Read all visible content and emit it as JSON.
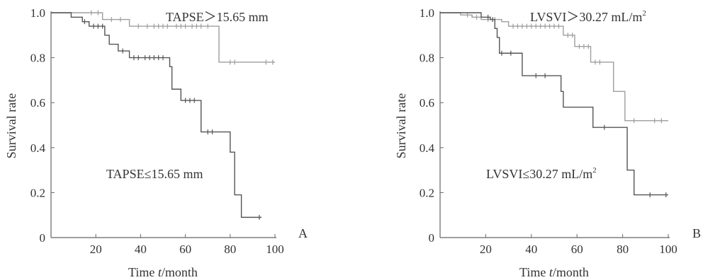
{
  "chart_data": [
    {
      "type": "line",
      "subtype": "kaplan-meier",
      "panel_label": "A",
      "xlabel_parts": [
        "Time ",
        "t",
        "/month"
      ],
      "ylabel": "Survival rate",
      "xlim": [
        0,
        100
      ],
      "ylim": [
        0,
        1.0
      ],
      "xticks": [
        20,
        40,
        60,
        80,
        100
      ],
      "xtick_labels": [
        "20",
        "40",
        "60",
        "80",
        "100"
      ],
      "yticks": [
        0,
        0.2,
        0.4,
        0.6,
        0.8,
        1.0
      ],
      "ytick_labels": [
        "0",
        "0.2",
        "0.4",
        "0.6",
        "0.8",
        "1.0"
      ],
      "grid": false,
      "series": [
        {
          "name": "TAPSE＞15.65 mm",
          "color": "#9e9e9e",
          "steps": [
            [
              0,
              1.0
            ],
            [
              23,
              0.97
            ],
            [
              35,
              0.94
            ],
            [
              75,
              0.78
            ],
            [
              100,
              0.78
            ]
          ],
          "censored": [
            [
              18,
              1.0
            ],
            [
              21,
              1.0
            ],
            [
              27,
              0.97
            ],
            [
              31,
              0.97
            ],
            [
              39,
              0.94
            ],
            [
              43,
              0.94
            ],
            [
              46,
              0.94
            ],
            [
              48,
              0.94
            ],
            [
              50,
              0.94
            ],
            [
              52,
              0.94
            ],
            [
              56,
              0.94
            ],
            [
              58,
              0.94
            ],
            [
              60,
              0.94
            ],
            [
              63,
              0.94
            ],
            [
              65,
              0.94
            ],
            [
              67,
              0.94
            ],
            [
              70,
              0.94
            ],
            [
              80,
              0.78
            ],
            [
              82,
              0.78
            ],
            [
              96,
              0.78
            ],
            [
              99,
              0.78
            ]
          ]
        },
        {
          "name": "TAPSE≤15.65 mm",
          "color": "#555555",
          "steps": [
            [
              0,
              1.0
            ],
            [
              9,
              0.98
            ],
            [
              14,
              0.96
            ],
            [
              17,
              0.94
            ],
            [
              24,
              0.9
            ],
            [
              26,
              0.86
            ],
            [
              30,
              0.83
            ],
            [
              35,
              0.8
            ],
            [
              53,
              0.76
            ],
            [
              54,
              0.66
            ],
            [
              58,
              0.61
            ],
            [
              67,
              0.47
            ],
            [
              80,
              0.38
            ],
            [
              82,
              0.19
            ],
            [
              85,
              0.09
            ],
            [
              94,
              0.09
            ]
          ],
          "censored": [
            [
              15,
              0.96
            ],
            [
              19,
              0.94
            ],
            [
              21,
              0.94
            ],
            [
              23,
              0.94
            ],
            [
              32,
              0.83
            ],
            [
              37,
              0.8
            ],
            [
              39,
              0.8
            ],
            [
              42,
              0.8
            ],
            [
              44,
              0.8
            ],
            [
              46,
              0.8
            ],
            [
              48,
              0.8
            ],
            [
              50,
              0.8
            ],
            [
              60,
              0.61
            ],
            [
              62,
              0.61
            ],
            [
              64,
              0.61
            ],
            [
              70,
              0.47
            ],
            [
              72,
              0.47
            ],
            [
              93,
              0.09
            ]
          ]
        }
      ],
      "annotations": [
        "TAPSE＞15.65 mm",
        "TAPSE≤15.65 mm"
      ]
    },
    {
      "type": "line",
      "subtype": "kaplan-meier",
      "panel_label": "B",
      "xlabel_parts": [
        "Time ",
        "t",
        "/month"
      ],
      "ylabel": "Survival rate",
      "xlim": [
        0,
        100
      ],
      "ylim": [
        0,
        1.0
      ],
      "xticks": [
        20,
        40,
        60,
        80,
        100
      ],
      "xtick_labels": [
        "20",
        "40",
        "60",
        "80",
        "100"
      ],
      "yticks": [
        0,
        0.2,
        0.4,
        0.6,
        0.8,
        1.0
      ],
      "ytick_labels": [
        "0",
        "0.2",
        "0.4",
        "0.6",
        "0.8",
        "1.0"
      ],
      "grid": false,
      "series": [
        {
          "name": "LVSVI＞30.27 mL/m2",
          "color": "#9e9e9e",
          "steps": [
            [
              0,
              1.0
            ],
            [
              9,
              0.99
            ],
            [
              14,
              0.98
            ],
            [
              18,
              0.97
            ],
            [
              27,
              0.96
            ],
            [
              30,
              0.94
            ],
            [
              54,
              0.9
            ],
            [
              59,
              0.85
            ],
            [
              66,
              0.78
            ],
            [
              76,
              0.65
            ],
            [
              81,
              0.52
            ],
            [
              100,
              0.52
            ]
          ],
          "censored": [
            [
              12,
              0.99
            ],
            [
              16,
              0.98
            ],
            [
              21,
              0.97
            ],
            [
              24,
              0.97
            ],
            [
              32,
              0.94
            ],
            [
              34,
              0.94
            ],
            [
              36,
              0.94
            ],
            [
              38,
              0.94
            ],
            [
              40,
              0.94
            ],
            [
              42,
              0.94
            ],
            [
              44,
              0.94
            ],
            [
              46,
              0.94
            ],
            [
              48,
              0.94
            ],
            [
              50,
              0.94
            ],
            [
              52,
              0.94
            ],
            [
              56,
              0.9
            ],
            [
              58,
              0.9
            ],
            [
              61,
              0.85
            ],
            [
              63,
              0.85
            ],
            [
              65,
              0.85
            ],
            [
              68,
              0.78
            ],
            [
              70,
              0.78
            ],
            [
              85,
              0.52
            ],
            [
              94,
              0.52
            ],
            [
              97,
              0.52
            ]
          ]
        },
        {
          "name": "LVSVI≤30.27 mL/m2",
          "color": "#555555",
          "steps": [
            [
              0,
              1.0
            ],
            [
              18,
              0.98
            ],
            [
              22,
              0.97
            ],
            [
              24,
              0.93
            ],
            [
              25,
              0.89
            ],
            [
              26,
              0.82
            ],
            [
              36,
              0.72
            ],
            [
              53,
              0.65
            ],
            [
              54,
              0.58
            ],
            [
              67,
              0.49
            ],
            [
              82,
              0.3
            ],
            [
              85,
              0.19
            ],
            [
              100,
              0.19
            ]
          ],
          "censored": [
            [
              21,
              0.98
            ],
            [
              23,
              0.97
            ],
            [
              27,
              0.82
            ],
            [
              31,
              0.82
            ],
            [
              42,
              0.72
            ],
            [
              46,
              0.72
            ],
            [
              72,
              0.49
            ],
            [
              92,
              0.19
            ],
            [
              99,
              0.19
            ]
          ]
        }
      ],
      "annotations": [
        "LVSVI＞30.27 mL/m",
        "LVSVI≤30.27 mL/m"
      ],
      "annotation_superscript": "2"
    }
  ]
}
